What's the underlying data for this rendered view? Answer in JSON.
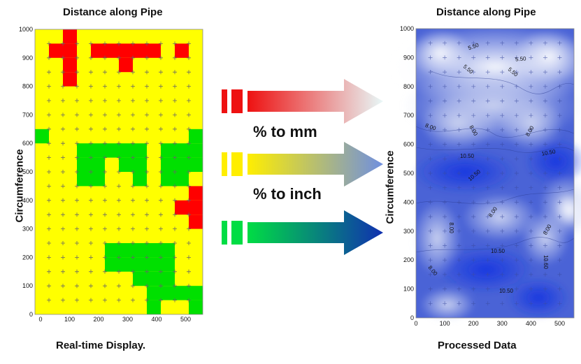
{
  "left_panel": {
    "title": "Distance along Pipe",
    "ylabel": "Circumference",
    "caption": "Real-time Display.",
    "x_ticks": [
      "0",
      "100",
      "200",
      "300",
      "400",
      "500"
    ],
    "y_ticks": [
      "0",
      "100",
      "200",
      "300",
      "400",
      "500",
      "600",
      "700",
      "800",
      "900",
      "1000"
    ],
    "colors": {
      "background": "#ffff00",
      "alert": "#ff0000",
      "ok": "#00e000"
    }
  },
  "right_panel": {
    "title": "Distance along Pipe",
    "ylabel": "Circumference",
    "caption": "Processed Data",
    "x_ticks": [
      "0",
      "100",
      "200",
      "300",
      "400",
      "500"
    ],
    "y_ticks": [
      "0",
      "100",
      "200",
      "300",
      "400",
      "500",
      "600",
      "700",
      "800",
      "900",
      "1000"
    ],
    "contour_labels": [
      "5.50",
      "5.50",
      "5.50",
      "5.50",
      "8.00",
      "8.00",
      "8.00",
      "10.50",
      "10.50",
      "10.50",
      "8.00",
      "8.00",
      "8.00",
      "10.50",
      "8.00",
      "10.60",
      "10.50"
    ]
  },
  "arrows": {
    "labels": [
      "% to mm",
      "% to inch"
    ],
    "colors": {
      "red": "#ee1111",
      "yellow": "#ffee00",
      "green": "#00dd44",
      "light": "#e8f8f8",
      "mid": "#6f8fe0",
      "dark": "#1030b0"
    }
  }
}
